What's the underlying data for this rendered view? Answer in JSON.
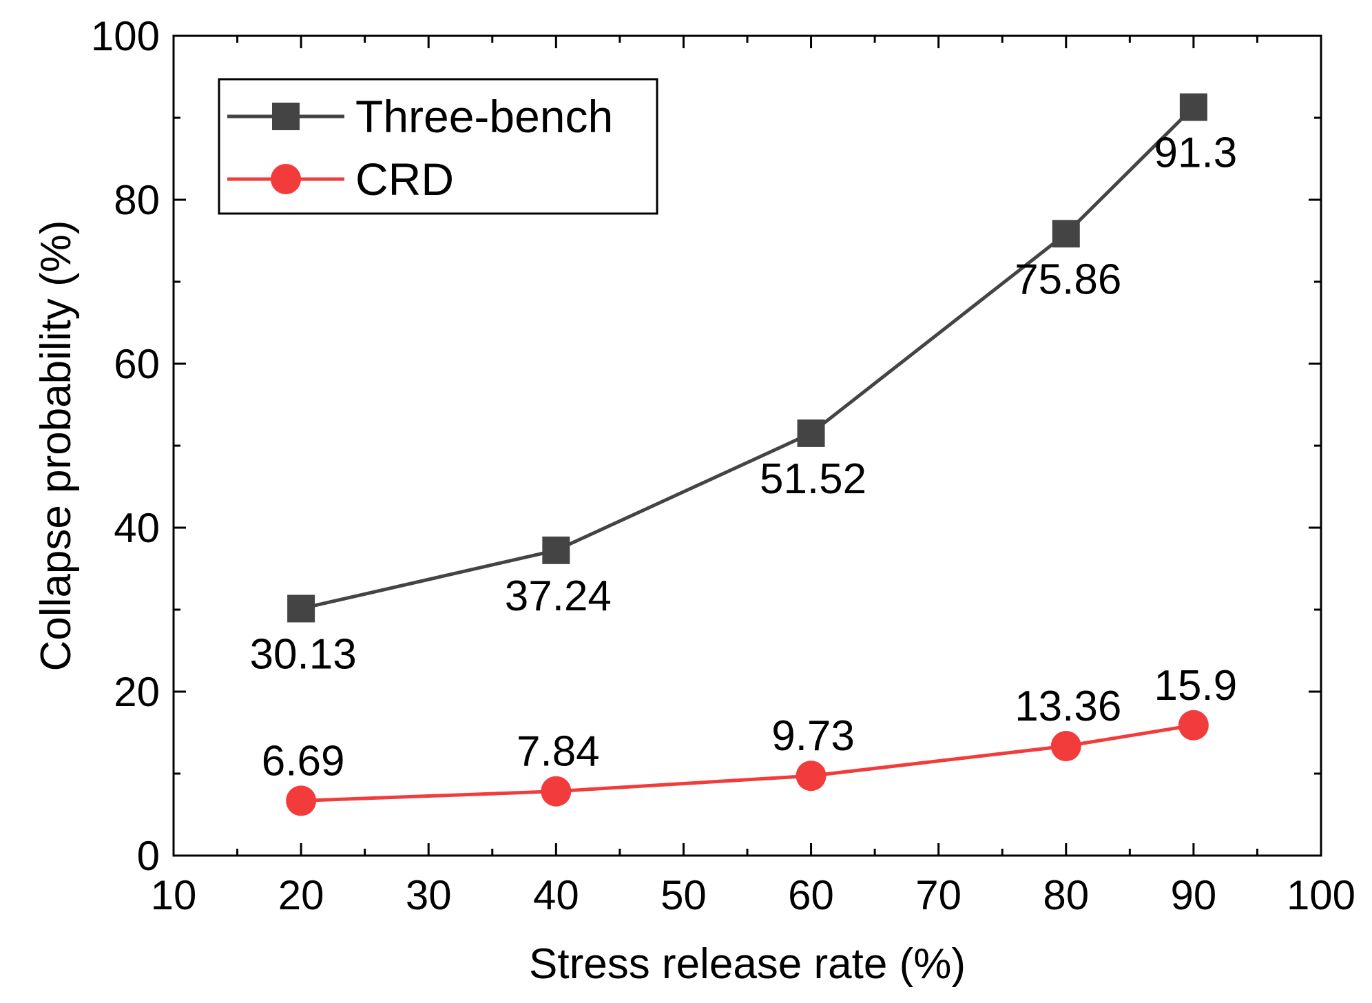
{
  "chart_data": {
    "type": "line",
    "title": "",
    "xlabel": "Stress release rate (%)",
    "ylabel": "Collapse probability (%)",
    "xlim": [
      10,
      100
    ],
    "ylim": [
      0,
      100
    ],
    "x_ticks": [
      10,
      20,
      30,
      40,
      50,
      60,
      70,
      80,
      90,
      100
    ],
    "y_ticks": [
      0,
      20,
      40,
      60,
      80,
      100
    ],
    "grid": false,
    "legend_position": "top-left",
    "series": [
      {
        "name": "Three-bench",
        "color": "#444444",
        "marker": "square",
        "x": [
          20,
          40,
          60,
          80,
          90
        ],
        "y": [
          30.13,
          37.24,
          51.52,
          75.86,
          91.3
        ],
        "labels": [
          "30.13",
          "37.24",
          "51.52",
          "75.86",
          "91.3"
        ],
        "label_position": "below"
      },
      {
        "name": "CRD",
        "color": "#f23b3b",
        "marker": "circle",
        "x": [
          20,
          40,
          60,
          80,
          90
        ],
        "y": [
          6.69,
          7.84,
          9.73,
          13.36,
          15.9
        ],
        "labels": [
          "6.69",
          "7.84",
          "9.73",
          "13.36",
          "15.9"
        ],
        "label_position": "above"
      }
    ]
  }
}
